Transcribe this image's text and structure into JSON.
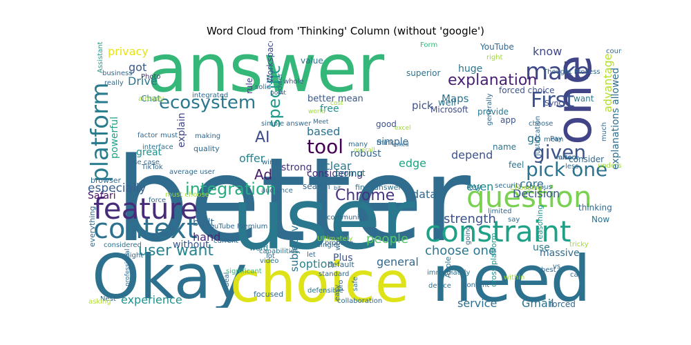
{
  "title": "Word Cloud from 'Thinking' Column (without 'google')",
  "words": [
    {
      "text": "answer",
      "color": "#35b779"
    },
    {
      "text": "better",
      "color": "#2f6c8e"
    },
    {
      "text": "user",
      "color": "#2a788e"
    },
    {
      "text": "need",
      "color": "#2c718e"
    },
    {
      "text": "Okay",
      "color": "#2d718e"
    },
    {
      "text": "choice",
      "color": "#dde318"
    },
    {
      "text": "one",
      "color": "#414487"
    },
    {
      "text": "constraint",
      "color": "#1fa187"
    },
    {
      "text": "feature",
      "color": "#472c7a"
    },
    {
      "text": "question",
      "color": "#7ad151"
    },
    {
      "text": "context",
      "color": "#2c718e"
    },
    {
      "text": "platform",
      "color": "#287c8e"
    },
    {
      "text": "ecosystem",
      "color": "#2a788e"
    },
    {
      "text": "make",
      "color": "#3e4989"
    },
    {
      "text": "First",
      "color": "#3b528b"
    },
    {
      "text": "integration",
      "color": "#27ad81"
    },
    {
      "text": "pick one",
      "color": "#2c728e"
    },
    {
      "text": "given",
      "color": "#3b528b"
    },
    {
      "text": "Chrome",
      "color": "#46327e"
    },
    {
      "text": "explanation",
      "color": "#481f70"
    },
    {
      "text": "tool",
      "color": "#440154"
    },
    {
      "text": "specific",
      "color": "#1f9a8a"
    },
    {
      "text": "user want",
      "color": "#25848e"
    },
    {
      "text": "strength",
      "color": "#3b528b"
    },
    {
      "text": "option",
      "color": "#26828e"
    },
    {
      "text": "choose one",
      "color": "#2a778e"
    },
    {
      "text": "people",
      "color": "#56c667"
    },
    {
      "text": "experience",
      "color": "#21918c"
    },
    {
      "text": "service",
      "color": "#2e6e8e"
    },
    {
      "text": "Gmail",
      "color": "#2c728e"
    },
    {
      "text": "especially",
      "color": "#355f8d"
    },
    {
      "text": "privacy",
      "color": "#e5e419"
    },
    {
      "text": "got",
      "color": "#39568c"
    },
    {
      "text": "Drive",
      "color": "#2a768e"
    },
    {
      "text": "powerful",
      "color": "#1fa187"
    },
    {
      "text": "explain",
      "color": "#3f4788"
    },
    {
      "text": "AI",
      "color": "#3e4c8a"
    },
    {
      "text": "offer",
      "color": "#26828e"
    },
    {
      "text": "Ad",
      "color": "#48186a"
    },
    {
      "text": "clear",
      "color": "#2a788e"
    },
    {
      "text": "edge",
      "color": "#20a386"
    },
    {
      "text": "depend",
      "color": "#3b528b"
    },
    {
      "text": "data",
      "color": "#31688e"
    },
    {
      "text": "hand",
      "color": "#482475"
    },
    {
      "text": "general",
      "color": "#31688e"
    },
    {
      "text": "subjective",
      "color": "#2c728e"
    },
    {
      "text": "Decision",
      "color": "#39568c"
    },
    {
      "text": "core",
      "color": "#2e6f8e"
    },
    {
      "text": "even",
      "color": "#24868e"
    },
    {
      "text": "go",
      "color": "#2b758e"
    },
    {
      "text": "know",
      "color": "#3f4889"
    },
    {
      "text": "huge",
      "color": "#2b758e"
    },
    {
      "text": "Maps",
      "color": "#2c728e"
    },
    {
      "text": "pick",
      "color": "#3b528b"
    },
    {
      "text": "free",
      "color": "#21918c"
    },
    {
      "text": "based",
      "color": "#2c718e"
    },
    {
      "text": "simple",
      "color": "#31688e"
    },
    {
      "text": "considering",
      "color": "#482878"
    },
    {
      "text": "built",
      "color": "#31688e"
    },
    {
      "text": "great",
      "color": "#21918c"
    },
    {
      "text": "advantage",
      "color": "#b5de2b"
    },
    {
      "text": "explanations allowed",
      "color": "#2e6e8e"
    },
    {
      "text": "Safari",
      "color": "#471164"
    },
    {
      "text": "without",
      "color": "#39568c"
    },
    {
      "text": "use",
      "color": "#2a788e"
    },
    {
      "text": "YouTube",
      "color": "#31688e"
    },
    {
      "text": "Microsoft",
      "color": "#3e4a89"
    },
    {
      "text": "robust",
      "color": "#32658e"
    },
    {
      "text": "strong",
      "color": "#46327e"
    },
    {
      "text": "better mean",
      "color": "#39568c"
    },
    {
      "text": "forced choice",
      "color": "#3b528b"
    },
    {
      "text": "superior",
      "color": "#2c728e"
    },
    {
      "text": "value",
      "color": "#2d708e"
    },
    {
      "text": "good",
      "color": "#3b528b"
    },
    {
      "text": "Workspace",
      "color": "#3e4a89"
    },
    {
      "text": "Photo",
      "color": "#46337e"
    },
    {
      "text": "Chat",
      "color": "#2a788e"
    },
    {
      "text": "rule",
      "color": "#443983"
    },
    {
      "text": "solid",
      "color": "#31688e"
    },
    {
      "text": "whole",
      "color": "#3b528b"
    },
    {
      "text": "well",
      "color": "#2c728e"
    },
    {
      "text": "want",
      "color": "#2a788e"
    },
    {
      "text": "Sync",
      "color": "#3e4a89"
    },
    {
      "text": "provide",
      "color": "#2a788e"
    },
    {
      "text": "app",
      "color": "#3b528b"
    },
    {
      "text": "name",
      "color": "#2c728e"
    },
    {
      "text": "consider",
      "color": "#31688e"
    },
    {
      "text": "feel",
      "color": "#2c728e"
    },
    {
      "text": "key",
      "color": "#2a788e"
    },
    {
      "text": "search",
      "color": "#31688e"
    },
    {
      "text": "prompt",
      "color": "#2a788e"
    },
    {
      "text": "final answer",
      "color": "#2c728e"
    },
    {
      "text": "thinking",
      "color": "#31688e"
    },
    {
      "text": "Now",
      "color": "#2c728e"
    },
    {
      "text": "reasoning",
      "color": "#21918c"
    },
    {
      "text": "massive",
      "color": "#31688e"
    },
    {
      "text": "call",
      "color": "#31688e"
    },
    {
      "text": "Apple",
      "color": "#2c728e"
    },
    {
      "text": "cross platform",
      "color": "#21918c"
    },
    {
      "text": "Plus",
      "color": "#3b528b"
    },
    {
      "text": "forced",
      "color": "#31688e"
    },
    {
      "text": "focused",
      "color": "#31688e"
    },
    {
      "text": "word",
      "color": "#2a788e"
    },
    {
      "text": "Nest",
      "color": "#31688e"
    },
    {
      "text": "asking",
      "color": "#b5de2b"
    },
    {
      "text": "everything",
      "color": "#31688e"
    },
    {
      "text": "browser",
      "color": "#31688e"
    },
    {
      "text": "give",
      "color": "#31688e"
    },
    {
      "text": "quality",
      "color": "#31688e"
    },
    {
      "text": "making",
      "color": "#31688e"
    },
    {
      "text": "interface",
      "color": "#2c728e"
    },
    {
      "text": "factor",
      "color": "#31688e"
    },
    {
      "text": "business",
      "color": "#31688e"
    },
    {
      "text": "Assistant",
      "color": "#1f9a8a"
    },
    {
      "text": "already",
      "color": "#a0da39"
    },
    {
      "text": "must",
      "color": "#31688e"
    },
    {
      "text": "integrated",
      "color": "#31688e"
    },
    {
      "text": "must choose",
      "color": "#a0da39"
    },
    {
      "text": "professional",
      "color": "#31688e"
    },
    {
      "text": "YouTube Premium",
      "color": "#31688e"
    },
    {
      "text": "current",
      "color": "#31688e"
    },
    {
      "text": "might",
      "color": "#31688e"
    },
    {
      "text": "considered",
      "color": "#2c728e"
    },
    {
      "text": "deal",
      "color": "#31688e"
    },
    {
      "text": "significant",
      "color": "#35b779"
    },
    {
      "text": "video",
      "color": "#2c728e"
    },
    {
      "text": "defensible",
      "color": "#2c728e"
    },
    {
      "text": "collaboration",
      "color": "#31688e"
    },
    {
      "text": "device",
      "color": "#2c728e"
    },
    {
      "text": "content",
      "color": "#31688e"
    },
    {
      "text": "safe",
      "color": "#2c728e"
    },
    {
      "text": "easy",
      "color": "#31688e"
    },
    {
      "text": "let",
      "color": "#31688e"
    },
    {
      "text": "capabilities",
      "color": "#2c728e"
    },
    {
      "text": "Ultimately",
      "color": "#8fd744"
    },
    {
      "text": "single",
      "color": "#31688e"
    },
    {
      "text": "lot",
      "color": "#31688e"
    },
    {
      "text": "standard",
      "color": "#31688e"
    },
    {
      "text": "default",
      "color": "#31688e"
    },
    {
      "text": "problem",
      "color": "#31688e"
    },
    {
      "text": "work",
      "color": "#31688e"
    },
    {
      "text": "immediately",
      "color": "#2c728e"
    },
    {
      "text": "say",
      "color": "#31688e"
    },
    {
      "text": "tricky",
      "color": "#a0da39"
    },
    {
      "text": "going",
      "color": "#31688e"
    },
    {
      "text": "limited",
      "color": "#31688e"
    },
    {
      "text": "obvious",
      "color": "#31688e"
    },
    {
      "text": "Choosing",
      "color": "#a0da39"
    },
    {
      "text": "bit",
      "color": "#31688e"
    },
    {
      "text": "community",
      "color": "#31688e"
    },
    {
      "text": "audience",
      "color": "#31688e"
    },
    {
      "text": "wins",
      "color": "#31688e"
    },
    {
      "text": "TikTok",
      "color": "#31688e"
    },
    {
      "text": "average user",
      "color": "#31688e"
    },
    {
      "text": "use case",
      "color": "#31688e"
    },
    {
      "text": "force",
      "color": "#31688e"
    },
    {
      "text": "many",
      "color": "#31688e"
    },
    {
      "text": "overall",
      "color": "#a0da39"
    },
    {
      "text": "excel",
      "color": "#a0da39"
    },
    {
      "text": "asked",
      "color": "#31688e"
    },
    {
      "text": "Pay",
      "color": "#31688e"
    },
    {
      "text": "generally",
      "color": "#31688e"
    },
    {
      "text": "choose",
      "color": "#31688e"
    },
    {
      "text": "mean",
      "color": "#31688e"
    },
    {
      "text": "security",
      "color": "#31688e"
    },
    {
      "text": "nuance",
      "color": "#31688e"
    },
    {
      "text": "often",
      "color": "#31688e"
    },
    {
      "text": "justification",
      "color": "#31688e"
    },
    {
      "text": "less",
      "color": "#31688e"
    },
    {
      "text": "understand",
      "color": "#a0da39"
    },
    {
      "text": "much",
      "color": "#31688e"
    },
    {
      "text": "course",
      "color": "#31688e"
    },
    {
      "text": "Thought Process",
      "color": "#31688e"
    },
    {
      "text": "Form",
      "color": "#35b779"
    },
    {
      "text": "right",
      "color": "#a0da39"
    },
    {
      "text": "point",
      "color": "#31688e"
    },
    {
      "text": "power",
      "color": "#31688e"
    },
    {
      "text": "cost",
      "color": "#a0da39"
    },
    {
      "text": "world",
      "color": "#a0da39"
    },
    {
      "text": "Meet",
      "color": "#31688e"
    },
    {
      "text": "really",
      "color": "#31688e"
    },
    {
      "text": "think",
      "color": "#31688e"
    },
    {
      "text": "pro",
      "color": "#31688e"
    },
    {
      "text": "within",
      "color": "#a0da39"
    },
    {
      "text": "vs",
      "color": "#31688e"
    },
    {
      "text": "best",
      "color": "#31688e"
    },
    {
      "text": "simple answer",
      "color": "#31688e"
    },
    {
      "text": "hardware",
      "color": "#31688e"
    },
    {
      "text": "common",
      "color": "#31688e"
    },
    {
      "text": "let break",
      "color": "#31688e"
    }
  ]
}
